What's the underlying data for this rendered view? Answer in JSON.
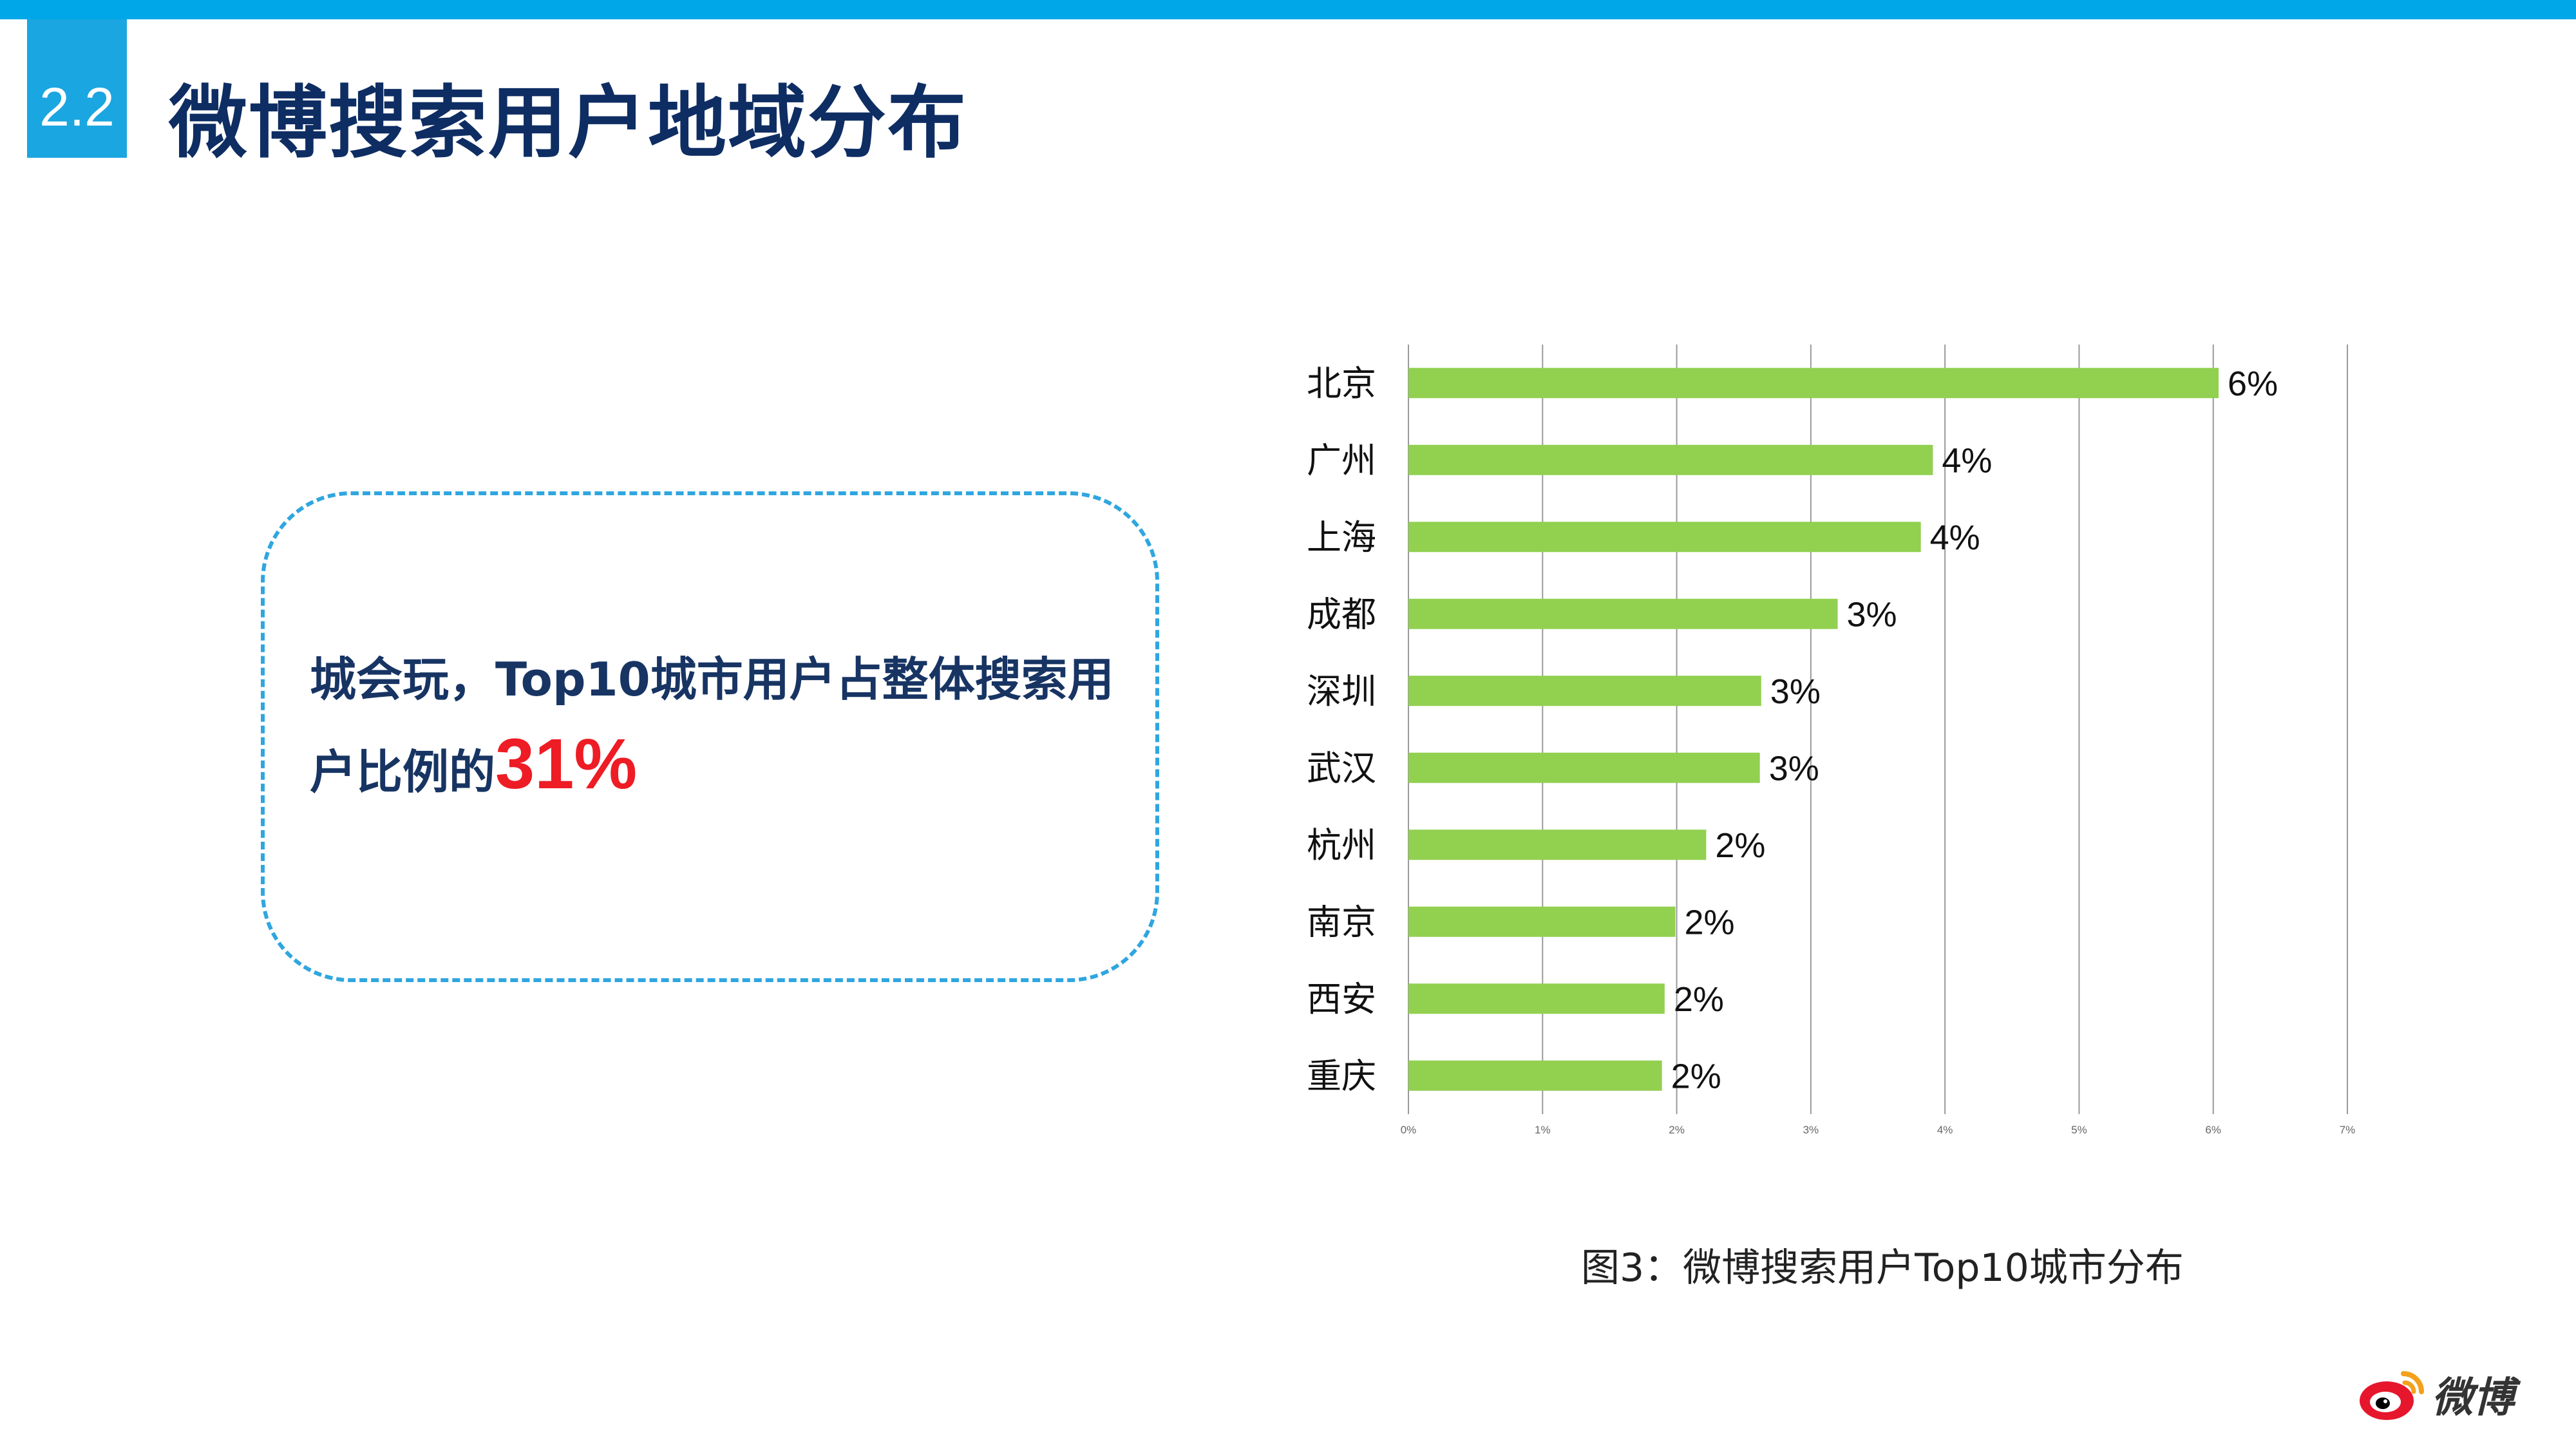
{
  "header": {
    "section_number": "2.2",
    "title": "微博搜索用户地域分布"
  },
  "callout": {
    "text_before": "城会玩，Top10城市用户占整体搜索用户比例的",
    "highlight": "31%"
  },
  "caption": "图3：微博搜索用户Top10城市分布",
  "logo": {
    "text": "微博",
    "icon": "weibo-logo-icon"
  },
  "colors": {
    "accent_blue": "#1aa6e0",
    "title_navy": "#0e2d63",
    "bar_green": "#92d050",
    "highlight_red": "#ee1c24"
  },
  "chart_data": {
    "type": "bar",
    "orientation": "horizontal",
    "categories": [
      "北京",
      "广州",
      "上海",
      "成都",
      "深圳",
      "武汉",
      "杭州",
      "南京",
      "西安",
      "重庆"
    ],
    "values": [
      6.04,
      3.91,
      3.82,
      3.2,
      2.63,
      2.62,
      2.22,
      1.99,
      1.91,
      1.89
    ],
    "data_labels": [
      "6%",
      "4%",
      "4%",
      "3%",
      "3%",
      "3%",
      "2%",
      "2%",
      "2%",
      "2%"
    ],
    "xlim": [
      0,
      7
    ],
    "x_ticks": [
      "0%",
      "1%",
      "2%",
      "3%",
      "4%",
      "5%",
      "6%",
      "7%"
    ],
    "grid": true,
    "legend": false,
    "bar_color": "#92d050"
  }
}
